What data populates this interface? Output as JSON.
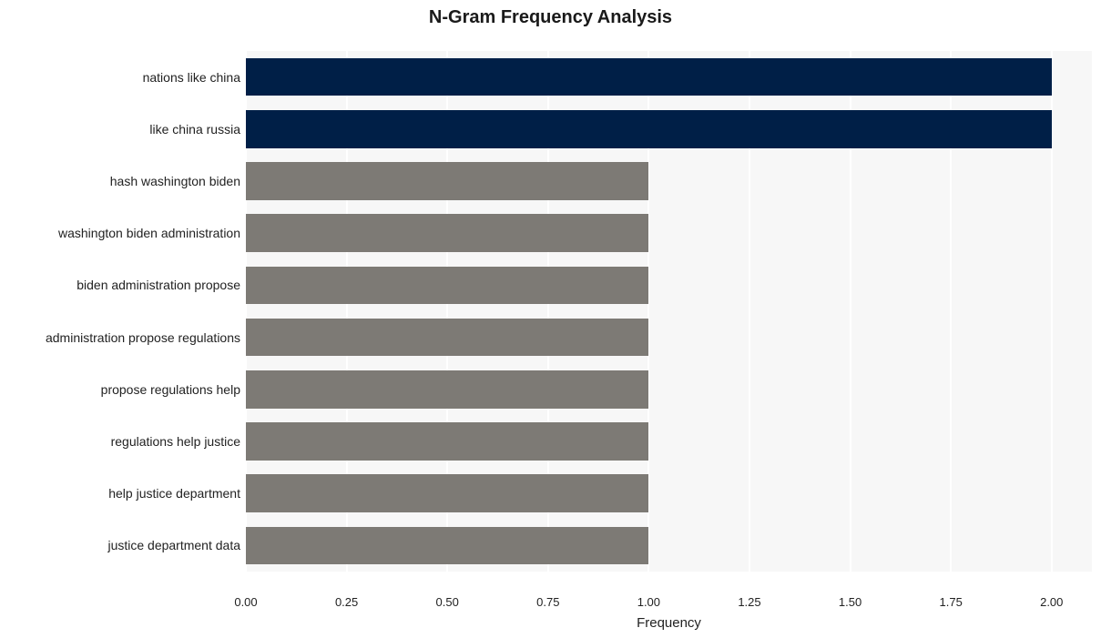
{
  "chart": {
    "type": "bar-horizontal",
    "title": "N-Gram Frequency Analysis",
    "title_fontsize": 20,
    "title_fontweight": "bold",
    "xlabel": "Frequency",
    "xlabel_fontsize": 15,
    "xlim": [
      0.0,
      2.1
    ],
    "xticks": [
      0.0,
      0.25,
      0.5,
      0.75,
      1.0,
      1.25,
      1.5,
      1.75,
      2.0
    ],
    "xtick_labels": [
      "0.00",
      "0.25",
      "0.50",
      "0.75",
      "1.00",
      "1.25",
      "1.50",
      "1.75",
      "2.00"
    ],
    "background_color": "#ffffff",
    "panel_band_color": "#f7f7f7",
    "grid_color": "#ffffff",
    "categories": [
      "nations like china",
      "like china russia",
      "hash washington biden",
      "washington biden administration",
      "biden administration propose",
      "administration propose regulations",
      "propose regulations help",
      "regulations help justice",
      "help justice department",
      "justice department data"
    ],
    "values": [
      2,
      2,
      1,
      1,
      1,
      1,
      1,
      1,
      1,
      1
    ],
    "bar_colors": [
      "#001f47",
      "#001f47",
      "#7d7a75",
      "#7d7a75",
      "#7d7a75",
      "#7d7a75",
      "#7d7a75",
      "#7d7a75",
      "#7d7a75",
      "#7d7a75"
    ],
    "bar_height_ratio": 0.73,
    "label_fontsize": 14,
    "tick_fontsize": 13
  }
}
